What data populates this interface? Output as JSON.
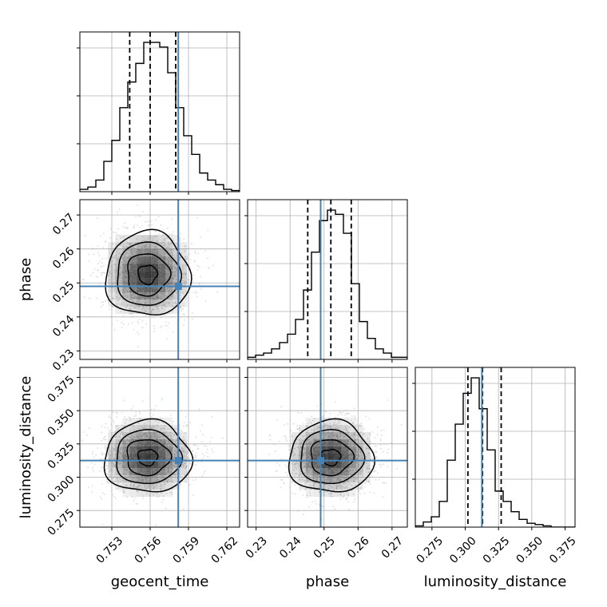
{
  "chart_data": {
    "type": "corner",
    "parameters": [
      "geocent_time",
      "phase",
      "luminosity_distance"
    ],
    "ranges": {
      "geocent_time": [
        0.7505,
        0.763
      ],
      "phase": [
        0.2275,
        0.2745
      ],
      "luminosity_distance": [
        0.2625,
        0.3825
      ]
    },
    "ticks": {
      "geocent_time": [
        "0.753",
        "0.756",
        "0.759",
        "0.762"
      ],
      "phase": [
        "0.23",
        "0.24",
        "0.25",
        "0.26",
        "0.27"
      ],
      "luminosity_distance": [
        "0.275",
        "0.300",
        "0.325",
        "0.350",
        "0.375"
      ]
    },
    "truths": {
      "geocent_time": 0.7582,
      "phase": 0.249,
      "luminosity_distance": 0.3125
    },
    "truth_color": "#4682b4",
    "quantiles": {
      "geocent_time": [
        0.7544,
        0.756,
        0.758
      ],
      "phase": [
        0.2452,
        0.252,
        0.258
      ],
      "luminosity_distance": [
        0.302,
        0.313,
        0.327
      ]
    },
    "histograms": {
      "geocent_time": {
        "edges": [
          0.7505,
          0.763
        ],
        "counts": [
          1,
          2,
          5,
          13,
          22,
          36,
          47,
          55,
          64,
          64,
          62,
          51,
          36,
          24,
          16,
          8,
          5,
          3,
          1,
          0.5
        ]
      },
      "phase": {
        "edges": [
          0.2275,
          0.2745
        ],
        "counts": [
          1,
          2,
          3,
          5,
          8,
          12,
          19,
          33,
          51,
          66,
          71,
          69,
          60,
          36,
          18,
          10,
          5,
          3,
          1,
          1
        ]
      },
      "luminosity_distance": {
        "edges": [
          0.2625,
          0.3825
        ],
        "counts": [
          0.5,
          2,
          4,
          10,
          26,
          40,
          52,
          58,
          46,
          30,
          14,
          10,
          6,
          3,
          1.5,
          1,
          0.5,
          0,
          0,
          0
        ]
      }
    },
    "scatter_2d": [
      {
        "x": "geocent_time",
        "y": "phase",
        "center": [
          0.7558,
          0.2525
        ],
        "sd": [
          0.00165,
          0.0062
        ]
      },
      {
        "x": "geocent_time",
        "y": "luminosity_distance",
        "center": [
          0.7558,
          0.315
        ],
        "sd": [
          0.0017,
          0.0135
        ]
      },
      {
        "x": "phase",
        "y": "luminosity_distance",
        "center": [
          0.252,
          0.315
        ],
        "sd": [
          0.0062,
          0.0135
        ]
      }
    ],
    "grid": true,
    "colors": {
      "hist_line": "#000000",
      "quantile_line": "#000000",
      "points": "#bfbfbf",
      "density": "#000000"
    }
  }
}
